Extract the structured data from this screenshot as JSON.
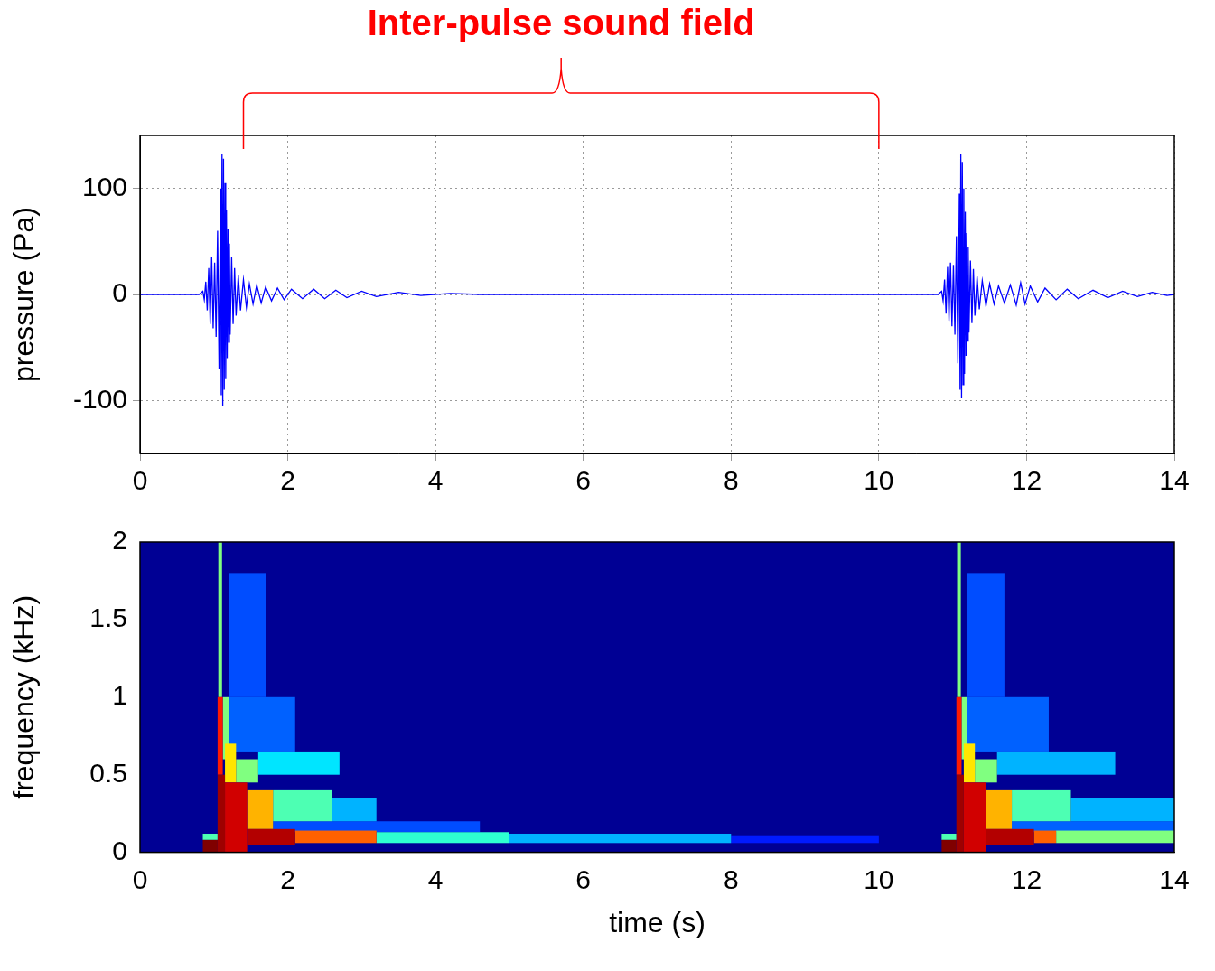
{
  "chart_data": [
    {
      "type": "line",
      "y_label": "pressure (Pa)",
      "color": "#0000ff",
      "xlim": [
        0,
        14
      ],
      "xticks": [
        0,
        2,
        4,
        6,
        8,
        10,
        12,
        14
      ],
      "ylim": [
        -150,
        150
      ],
      "yticks": [
        -100,
        0,
        100
      ],
      "grid": true,
      "annotation": {
        "text": "Inter-pulse sound field",
        "x_start": 1.4,
        "x_end": 10,
        "color": "#ff0000"
      },
      "x": [
        0,
        0.8,
        0.85,
        0.87,
        0.89,
        0.91,
        0.93,
        0.95,
        0.97,
        0.99,
        1.01,
        1.03,
        1.05,
        1.07,
        1.09,
        1.1,
        1.11,
        1.12,
        1.13,
        1.14,
        1.15,
        1.16,
        1.17,
        1.18,
        1.19,
        1.2,
        1.21,
        1.22,
        1.24,
        1.26,
        1.28,
        1.3,
        1.33,
        1.36,
        1.4,
        1.44,
        1.48,
        1.53,
        1.58,
        1.64,
        1.7,
        1.78,
        1.86,
        1.95,
        2.05,
        2.2,
        2.35,
        2.5,
        2.65,
        2.8,
        3.0,
        3.2,
        3.5,
        3.8,
        4.2,
        4.6,
        10.8,
        10.85,
        10.87,
        10.89,
        10.91,
        10.93,
        10.95,
        10.97,
        10.99,
        11.01,
        11.03,
        11.05,
        11.07,
        11.09,
        11.1,
        11.11,
        11.12,
        11.13,
        11.14,
        11.15,
        11.16,
        11.17,
        11.18,
        11.19,
        11.2,
        11.21,
        11.22,
        11.24,
        11.26,
        11.28,
        11.3,
        11.33,
        11.36,
        11.4,
        11.45,
        11.5,
        11.56,
        11.62,
        11.7,
        11.78,
        11.86,
        11.92,
        11.98,
        12.05,
        12.15,
        12.25,
        12.4,
        12.55,
        12.7,
        12.9,
        13.1,
        13.3,
        13.5,
        13.7,
        13.9,
        14.0
      ],
      "values": [
        0,
        0,
        3,
        -5,
        12,
        -15,
        25,
        -28,
        35,
        -32,
        30,
        -40,
        60,
        -70,
        100,
        -95,
        132,
        -105,
        128,
        -90,
        105,
        -80,
        80,
        -60,
        62,
        -45,
        48,
        -38,
        35,
        -28,
        25,
        -20,
        18,
        -15,
        14,
        -12,
        10,
        -9,
        9,
        -8,
        7,
        -6,
        6,
        -5,
        5,
        -4,
        5,
        -4,
        4,
        -3,
        3,
        -2,
        2,
        -1,
        1,
        0,
        0,
        3,
        -6,
        14,
        -18,
        26,
        -25,
        30,
        -30,
        28,
        -38,
        55,
        -65,
        95,
        -90,
        132,
        -98,
        125,
        -85,
        100,
        -75,
        78,
        -58,
        58,
        -44,
        45,
        -36,
        32,
        -27,
        24,
        -20,
        17,
        -14,
        13,
        -11,
        10,
        -9,
        8,
        -8,
        9,
        -10,
        11,
        -9,
        8,
        -7,
        6,
        -5,
        5,
        -4,
        4,
        -3,
        3,
        -2,
        2,
        -1,
        0
      ]
    },
    {
      "type": "heatmap",
      "x_label": "time (s)",
      "y_label": "frequency (kHz)",
      "xlim": [
        0,
        14
      ],
      "xticks": [
        0,
        2,
        4,
        6,
        8,
        10,
        12,
        14
      ],
      "ylim": [
        0,
        2
      ],
      "yticks": [
        0,
        0.5,
        1,
        1.5,
        2
      ],
      "grid": false,
      "clim": [
        0,
        1
      ],
      "background_level": 0.02,
      "cells": [
        [
          1.2,
          1.7,
          1.0,
          1.8,
          0.2
        ],
        [
          1.2,
          2.1,
          0.65,
          1.0,
          0.22
        ],
        [
          1.8,
          4.6,
          0.13,
          0.2,
          0.2
        ],
        [
          8.0,
          10.0,
          0.06,
          0.11,
          0.15
        ],
        [
          5.0,
          8.0,
          0.06,
          0.12,
          0.3
        ],
        [
          3.2,
          5.0,
          0.06,
          0.13,
          0.42
        ],
        [
          2.6,
          3.2,
          0.2,
          0.35,
          0.3
        ],
        [
          1.6,
          2.7,
          0.5,
          0.65,
          0.35
        ],
        [
          1.8,
          2.6,
          0.2,
          0.4,
          0.45
        ],
        [
          2.1,
          3.2,
          0.06,
          0.14,
          0.78
        ],
        [
          1.3,
          1.6,
          0.45,
          0.6,
          0.5
        ],
        [
          1.45,
          1.8,
          0.15,
          0.4,
          0.7
        ],
        [
          1.45,
          2.1,
          0.05,
          0.15,
          0.95
        ],
        [
          1.12,
          1.2,
          0.6,
          1.0,
          0.5
        ],
        [
          1.15,
          1.3,
          0.45,
          0.7,
          0.65
        ],
        [
          1.15,
          1.45,
          0,
          0.45,
          0.92
        ],
        [
          0.85,
          1.05,
          0.08,
          0.12,
          0.45
        ],
        [
          0.85,
          1.05,
          0,
          0.08,
          1.0
        ],
        [
          1.06,
          1.11,
          1.0,
          2.0,
          0.5
        ],
        [
          1.05,
          1.12,
          0.5,
          1.0,
          0.85
        ],
        [
          1.05,
          1.15,
          0,
          0.5,
          0.97
        ],
        [
          11.2,
          11.7,
          1.0,
          1.8,
          0.2
        ],
        [
          11.2,
          12.3,
          0.65,
          1.0,
          0.22
        ],
        [
          11.8,
          14.0,
          0.13,
          0.2,
          0.22
        ],
        [
          12.6,
          14.0,
          0.2,
          0.35,
          0.3
        ],
        [
          11.6,
          13.2,
          0.5,
          0.65,
          0.3
        ],
        [
          11.8,
          12.6,
          0.2,
          0.4,
          0.45
        ],
        [
          12.4,
          14.0,
          0.06,
          0.14,
          0.5
        ],
        [
          12.1,
          12.4,
          0.06,
          0.14,
          0.78
        ],
        [
          11.3,
          11.6,
          0.45,
          0.6,
          0.5
        ],
        [
          11.45,
          11.8,
          0.15,
          0.4,
          0.7
        ],
        [
          11.45,
          12.1,
          0.05,
          0.15,
          0.95
        ],
        [
          11.12,
          11.2,
          0.6,
          1.0,
          0.5
        ],
        [
          11.15,
          11.3,
          0.45,
          0.7,
          0.65
        ],
        [
          11.15,
          11.45,
          0,
          0.45,
          0.92
        ],
        [
          10.85,
          11.05,
          0.08,
          0.12,
          0.45
        ],
        [
          10.85,
          11.05,
          0,
          0.08,
          1.0
        ],
        [
          11.06,
          11.11,
          1.0,
          2.0,
          0.5
        ],
        [
          11.05,
          11.12,
          0.5,
          1.0,
          0.85
        ],
        [
          11.05,
          11.15,
          0,
          0.5,
          0.97
        ]
      ]
    }
  ]
}
